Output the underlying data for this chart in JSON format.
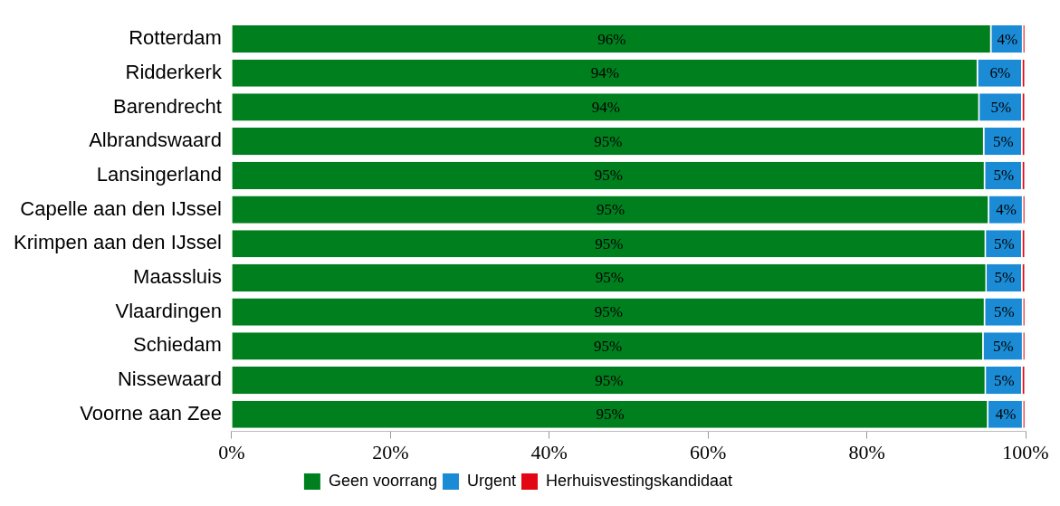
{
  "chart_data": {
    "type": "bar",
    "orientation": "horizontal",
    "stacked": true,
    "grid": false,
    "legend": "bottom",
    "categories": [
      "Rotterdam",
      "Ridderkerk",
      "Barendrecht",
      "Albrandswaard",
      "Lansingerland",
      "Capelle aan den IJssel",
      "Krimpen aan den IJssel",
      "Maassluis",
      "Vlaardingen",
      "Schiedam",
      "Nissewaard",
      "Voorne aan Zee"
    ],
    "xlim": [
      0,
      100
    ],
    "xticks": [
      {
        "value": 0,
        "label": "0%"
      },
      {
        "value": 20,
        "label": "20%"
      },
      {
        "value": 40,
        "label": "40%"
      },
      {
        "value": 60,
        "label": "60%"
      },
      {
        "value": 80,
        "label": "80%"
      },
      {
        "value": 100,
        "label": "100%"
      }
    ],
    "series": [
      {
        "name": "Geen voorrang",
        "color": "#007f1f",
        "values": [
          95.7,
          94.0,
          94.2,
          94.8,
          94.9,
          95.4,
          95.0,
          95.1,
          94.9,
          94.7,
          95.0,
          95.3
        ],
        "value_labels": [
          "96%",
          "94%",
          "94%",
          "95%",
          "95%",
          "95%",
          "95%",
          "95%",
          "95%",
          "95%",
          "95%",
          "95%"
        ]
      },
      {
        "name": "Urgent",
        "color": "#1a8bd4",
        "values": [
          4.0,
          5.6,
          5.4,
          4.8,
          4.7,
          4.3,
          4.6,
          4.5,
          4.8,
          5.0,
          4.6,
          4.4
        ],
        "value_labels": [
          "4%",
          "6%",
          "5%",
          "5%",
          "5%",
          "4%",
          "5%",
          "5%",
          "5%",
          "5%",
          "5%",
          "4%"
        ]
      },
      {
        "name": "Herhuisvestingskandidaat",
        "color": "#e30613",
        "values": [
          0.3,
          0.4,
          0.4,
          0.4,
          0.4,
          0.3,
          0.4,
          0.4,
          0.3,
          0.3,
          0.4,
          0.3
        ]
      }
    ]
  }
}
